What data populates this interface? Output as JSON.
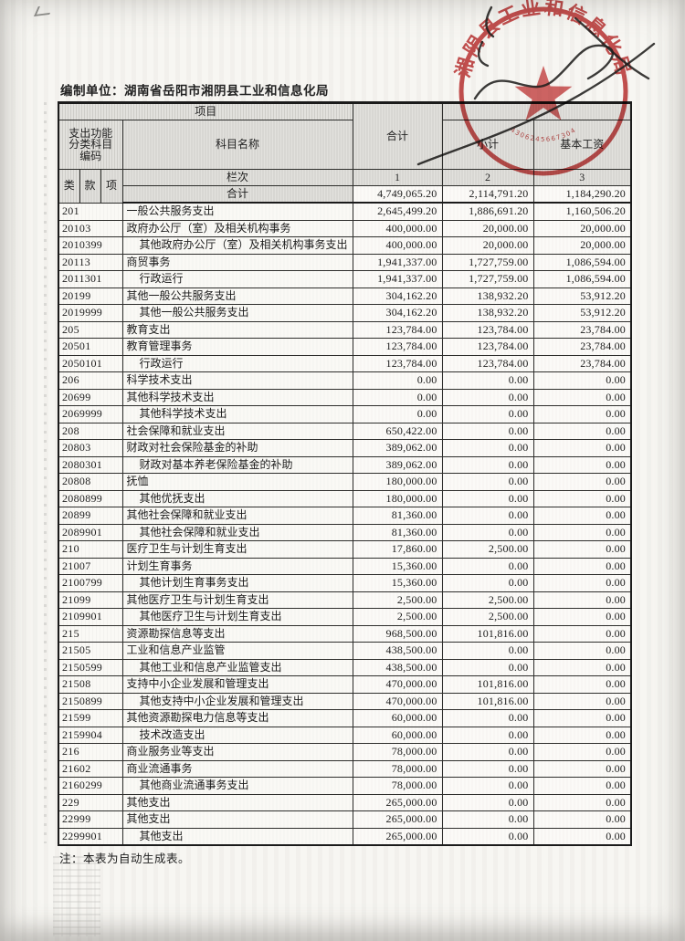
{
  "document": {
    "prepared_by_label": "编制单位：",
    "prepared_by": "湖南省岳阳市湘阴县工业和信息化局",
    "note": "注：本表为自动生成表。"
  },
  "stamp": {
    "ring_text": "湘阴县工业和信息化局",
    "serial": "4306245667304"
  },
  "table": {
    "header": {
      "project": "项目",
      "code_title": "支出功能分类科目编码",
      "subject_name": "科目名称",
      "total": "合计",
      "subtotal": "小计",
      "basic_salary": "基本工资",
      "class": "类",
      "section": "款",
      "item": "项",
      "column_row_label": "栏次",
      "column_numbers": [
        "1",
        "2",
        "3"
      ]
    },
    "grand_total": {
      "label": "合计",
      "values": [
        "4,749,065.20",
        "2,114,791.20",
        "1,184,290.20"
      ]
    },
    "rows": [
      {
        "code": "201",
        "name": "一般公共服务支出",
        "indent": 0,
        "values": [
          "2,645,499.20",
          "1,886,691.20",
          "1,160,506.20"
        ]
      },
      {
        "code": "20103",
        "name": "政府办公厅（室）及相关机构事务",
        "indent": 0,
        "values": [
          "400,000.00",
          "20,000.00",
          "20,000.00"
        ]
      },
      {
        "code": "2010399",
        "name": "其他政府办公厅（室）及相关机构事务支出",
        "indent": 1,
        "values": [
          "400,000.00",
          "20,000.00",
          "20,000.00"
        ]
      },
      {
        "code": "20113",
        "name": "商贸事务",
        "indent": 0,
        "values": [
          "1,941,337.00",
          "1,727,759.00",
          "1,086,594.00"
        ]
      },
      {
        "code": "2011301",
        "name": "行政运行",
        "indent": 1,
        "values": [
          "1,941,337.00",
          "1,727,759.00",
          "1,086,594.00"
        ]
      },
      {
        "code": "20199",
        "name": "其他一般公共服务支出",
        "indent": 0,
        "values": [
          "304,162.20",
          "138,932.20",
          "53,912.20"
        ]
      },
      {
        "code": "2019999",
        "name": "其他一般公共服务支出",
        "indent": 1,
        "values": [
          "304,162.20",
          "138,932.20",
          "53,912.20"
        ]
      },
      {
        "code": "205",
        "name": "教育支出",
        "indent": 0,
        "values": [
          "123,784.00",
          "123,784.00",
          "23,784.00"
        ]
      },
      {
        "code": "20501",
        "name": "教育管理事务",
        "indent": 0,
        "values": [
          "123,784.00",
          "123,784.00",
          "23,784.00"
        ]
      },
      {
        "code": "2050101",
        "name": "行政运行",
        "indent": 1,
        "values": [
          "123,784.00",
          "123,784.00",
          "23,784.00"
        ]
      },
      {
        "code": "206",
        "name": "科学技术支出",
        "indent": 0,
        "values": [
          "0.00",
          "0.00",
          "0.00"
        ]
      },
      {
        "code": "20699",
        "name": "其他科学技术支出",
        "indent": 0,
        "values": [
          "0.00",
          "0.00",
          "0.00"
        ]
      },
      {
        "code": "2069999",
        "name": "其他科学技术支出",
        "indent": 1,
        "values": [
          "0.00",
          "0.00",
          "0.00"
        ]
      },
      {
        "code": "208",
        "name": "社会保障和就业支出",
        "indent": 0,
        "values": [
          "650,422.00",
          "0.00",
          "0.00"
        ]
      },
      {
        "code": "20803",
        "name": "财政对社会保险基金的补助",
        "indent": 0,
        "values": [
          "389,062.00",
          "0.00",
          "0.00"
        ]
      },
      {
        "code": "2080301",
        "name": "财政对基本养老保险基金的补助",
        "indent": 1,
        "values": [
          "389,062.00",
          "0.00",
          "0.00"
        ]
      },
      {
        "code": "20808",
        "name": "抚恤",
        "indent": 0,
        "values": [
          "180,000.00",
          "0.00",
          "0.00"
        ]
      },
      {
        "code": "2080899",
        "name": "其他优抚支出",
        "indent": 1,
        "values": [
          "180,000.00",
          "0.00",
          "0.00"
        ]
      },
      {
        "code": "20899",
        "name": "其他社会保障和就业支出",
        "indent": 0,
        "values": [
          "81,360.00",
          "0.00",
          "0.00"
        ]
      },
      {
        "code": "2089901",
        "name": "其他社会保障和就业支出",
        "indent": 1,
        "values": [
          "81,360.00",
          "0.00",
          "0.00"
        ]
      },
      {
        "code": "210",
        "name": "医疗卫生与计划生育支出",
        "indent": 0,
        "values": [
          "17,860.00",
          "2,500.00",
          "0.00"
        ]
      },
      {
        "code": "21007",
        "name": "计划生育事务",
        "indent": 0,
        "values": [
          "15,360.00",
          "0.00",
          "0.00"
        ]
      },
      {
        "code": "2100799",
        "name": "其他计划生育事务支出",
        "indent": 1,
        "values": [
          "15,360.00",
          "0.00",
          "0.00"
        ]
      },
      {
        "code": "21099",
        "name": "其他医疗卫生与计划生育支出",
        "indent": 0,
        "values": [
          "2,500.00",
          "2,500.00",
          "0.00"
        ]
      },
      {
        "code": "2109901",
        "name": "其他医疗卫生与计划生育支出",
        "indent": 1,
        "values": [
          "2,500.00",
          "2,500.00",
          "0.00"
        ]
      },
      {
        "code": "215",
        "name": "资源勘探信息等支出",
        "indent": 0,
        "values": [
          "968,500.00",
          "101,816.00",
          "0.00"
        ]
      },
      {
        "code": "21505",
        "name": "工业和信息产业监管",
        "indent": 0,
        "values": [
          "438,500.00",
          "0.00",
          "0.00"
        ]
      },
      {
        "code": "2150599",
        "name": "其他工业和信息产业监管支出",
        "indent": 1,
        "values": [
          "438,500.00",
          "0.00",
          "0.00"
        ]
      },
      {
        "code": "21508",
        "name": "支持中小企业发展和管理支出",
        "indent": 0,
        "values": [
          "470,000.00",
          "101,816.00",
          "0.00"
        ]
      },
      {
        "code": "2150899",
        "name": "其他支持中小企业发展和管理支出",
        "indent": 1,
        "values": [
          "470,000.00",
          "101,816.00",
          "0.00"
        ]
      },
      {
        "code": "21599",
        "name": "其他资源勘探电力信息等支出",
        "indent": 0,
        "values": [
          "60,000.00",
          "0.00",
          "0.00"
        ]
      },
      {
        "code": "2159904",
        "name": "技术改造支出",
        "indent": 1,
        "values": [
          "60,000.00",
          "0.00",
          "0.00"
        ]
      },
      {
        "code": "216",
        "name": "商业服务业等支出",
        "indent": 0,
        "values": [
          "78,000.00",
          "0.00",
          "0.00"
        ]
      },
      {
        "code": "21602",
        "name": "商业流通事务",
        "indent": 0,
        "values": [
          "78,000.00",
          "0.00",
          "0.00"
        ]
      },
      {
        "code": "2160299",
        "name": "其他商业流通事务支出",
        "indent": 1,
        "values": [
          "78,000.00",
          "0.00",
          "0.00"
        ]
      },
      {
        "code": "229",
        "name": "其他支出",
        "indent": 0,
        "values": [
          "265,000.00",
          "0.00",
          "0.00"
        ]
      },
      {
        "code": "22999",
        "name": "其他支出",
        "indent": 0,
        "values": [
          "265,000.00",
          "0.00",
          "0.00"
        ]
      },
      {
        "code": "2299901",
        "name": "其他支出",
        "indent": 1,
        "values": [
          "265,000.00",
          "0.00",
          "0.00"
        ]
      }
    ]
  }
}
